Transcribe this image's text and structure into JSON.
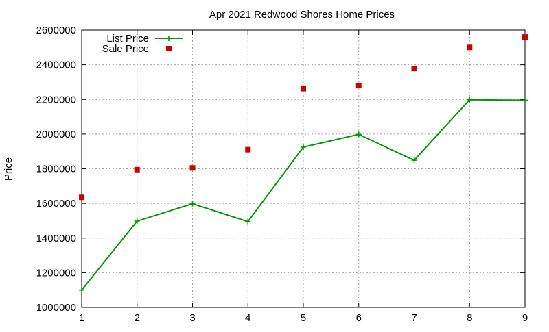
{
  "chart_data": {
    "type": "line",
    "title": "Apr 2021 Redwood Shores Home Prices",
    "xlabel": "",
    "ylabel": "Price",
    "xlim": [
      1,
      9
    ],
    "ylim": [
      1000000,
      2600000
    ],
    "x_ticks": [
      1,
      2,
      3,
      4,
      5,
      6,
      7,
      8,
      9
    ],
    "y_ticks": [
      1000000,
      1200000,
      1400000,
      1600000,
      1800000,
      2000000,
      2200000,
      2400000,
      2600000
    ],
    "grid": true,
    "legend_position": "top-left",
    "series": [
      {
        "name": "List Price",
        "style": "line-with-plus-markers",
        "color": "#009900",
        "x": [
          1,
          2,
          3,
          4,
          5,
          6,
          7,
          8,
          9
        ],
        "y": [
          1100000,
          1498000,
          1598000,
          1495000,
          1925000,
          1998000,
          1849000,
          2198000,
          2195000
        ]
      },
      {
        "name": "Sale Price",
        "style": "square-markers",
        "color": "#cc0000",
        "x": [
          1,
          2,
          3,
          4,
          5,
          6,
          7,
          8,
          9
        ],
        "y": [
          1635000,
          1795000,
          1805000,
          1910000,
          2262000,
          2280000,
          2378000,
          2500000,
          2560000
        ]
      }
    ]
  }
}
